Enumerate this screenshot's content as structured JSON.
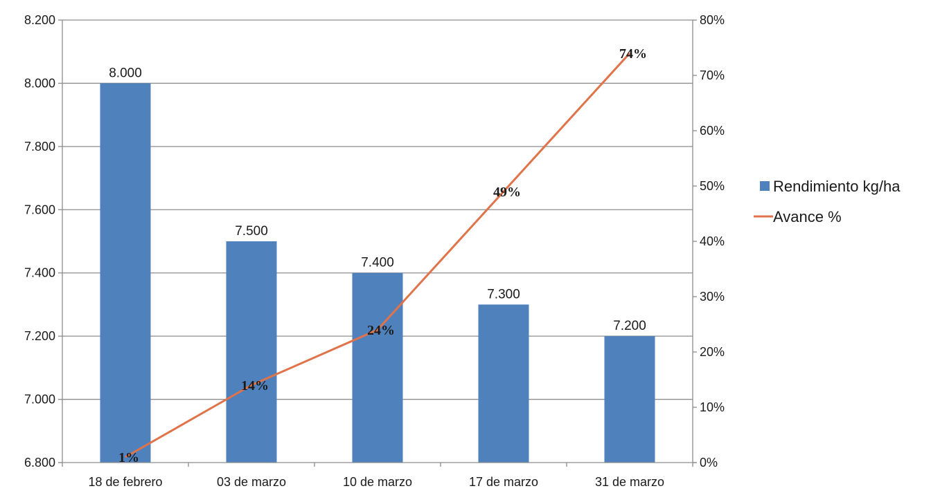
{
  "chart_data": {
    "type": "bar",
    "categories": [
      "18 de febrero",
      "03 de marzo",
      "10 de marzo",
      "17 de marzo",
      "31 de marzo"
    ],
    "series": [
      {
        "name": "Rendimiento kg/ha",
        "kind": "bar",
        "axis": "left",
        "color": "#4f81bd",
        "values": [
          8000,
          7500,
          7400,
          7300,
          7200
        ],
        "labels": [
          "8.000",
          "7.500",
          "7.400",
          "7.300",
          "7.200"
        ]
      },
      {
        "name": "Avance %",
        "kind": "line",
        "axis": "right",
        "color": "#e0734a",
        "values": [
          1,
          14,
          24,
          49,
          74
        ],
        "labels": [
          "1%",
          "14%",
          "24%",
          "49%",
          "74%"
        ]
      }
    ],
    "y_left": {
      "min": 6800,
      "max": 8200,
      "ticks": [
        6800,
        7000,
        7200,
        7400,
        7600,
        7800,
        8000,
        8200
      ],
      "tick_labels": [
        "6.800",
        "7.000",
        "7.200",
        "7.400",
        "7.600",
        "7.800",
        "8.000",
        "8.200"
      ]
    },
    "y_right": {
      "min": 0,
      "max": 80,
      "ticks": [
        0,
        10,
        20,
        30,
        40,
        50,
        60,
        70,
        80
      ],
      "tick_labels": [
        "0%",
        "10%",
        "20%",
        "30%",
        "40%",
        "50%",
        "60%",
        "70%",
        "80%"
      ]
    },
    "grid": true,
    "legend_position": "right"
  }
}
